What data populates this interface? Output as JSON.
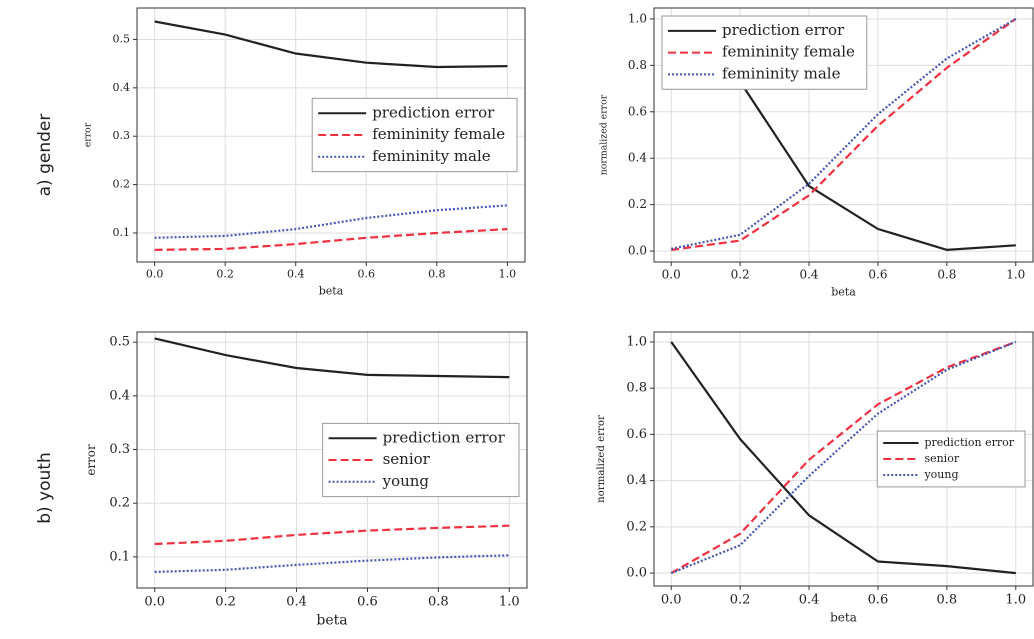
{
  "row_labels": [
    "a) gender",
    "b) youth"
  ],
  "chart_data": [
    {
      "type": "line",
      "xlabel": "beta",
      "ylabel": "error",
      "x": [
        0,
        0.2,
        0.4,
        0.6,
        0.8,
        1.0
      ],
      "xlim": [
        -0.05,
        1.05
      ],
      "ylim": [
        0.04,
        0.565
      ],
      "xticks": [
        {
          "value": 0,
          "label": "0.0"
        },
        0.2,
        0.4,
        0.6,
        0.8,
        {
          "value": 1,
          "label": "1.0"
        }
      ],
      "yticks": [
        0.1,
        0.2,
        0.3,
        0.4,
        0.5
      ],
      "grid": true,
      "legend": "center right",
      "series": [
        {
          "name": "prediction error",
          "color": "#222222",
          "linestyle": "solid",
          "values": [
            0.537,
            0.51,
            0.471,
            0.452,
            0.443,
            0.445
          ]
        },
        {
          "name": "femininity female",
          "color": "#f0303f",
          "linestyle": "dashed",
          "values": [
            0.065,
            0.067,
            0.077,
            0.09,
            0.1,
            0.108
          ]
        },
        {
          "name": "femininity male",
          "color": "#4455bb",
          "linestyle": "dotted",
          "values": [
            0.09,
            0.094,
            0.108,
            0.131,
            0.147,
            0.157
          ]
        }
      ]
    },
    {
      "type": "line",
      "xlabel": "beta",
      "ylabel": "normalized error",
      "x": [
        0,
        0.2,
        0.4,
        0.6,
        0.8,
        1.0
      ],
      "xlim": [
        -0.05,
        1.05
      ],
      "ylim": [
        -0.047,
        1.047
      ],
      "xticks": [
        {
          "value": 0,
          "label": "0.0"
        },
        0.2,
        0.4,
        0.6,
        0.8,
        {
          "value": 1,
          "label": "1.0"
        }
      ],
      "yticks": [
        {
          "value": 0,
          "label": "0.0"
        },
        0.2,
        0.4,
        0.6,
        0.8,
        {
          "value": 1,
          "label": "1.0"
        }
      ],
      "grid": true,
      "legend": "upper left",
      "series": [
        {
          "name": "prediction error",
          "color": "#222222",
          "linestyle": "solid",
          "values": [
            1.0,
            0.73,
            0.28,
            0.095,
            0.005,
            0.025
          ]
        },
        {
          "name": "femininity female",
          "color": "#f0303f",
          "linestyle": "dashed",
          "values": [
            0.005,
            0.045,
            0.24,
            0.54,
            0.79,
            1.0
          ]
        },
        {
          "name": "femininity male",
          "color": "#4455bb",
          "linestyle": "dotted",
          "values": [
            0.01,
            0.07,
            0.29,
            0.59,
            0.83,
            1.0
          ]
        }
      ]
    },
    {
      "type": "line",
      "xlabel": "beta",
      "ylabel": "error",
      "x": [
        0,
        0.2,
        0.4,
        0.6,
        0.8,
        1.0
      ],
      "xlim": [
        -0.05,
        1.05
      ],
      "ylim": [
        0.042,
        0.519
      ],
      "xticks": [
        {
          "value": 0,
          "label": "0.0"
        },
        0.2,
        0.4,
        0.6,
        0.8,
        {
          "value": 1,
          "label": "1.0"
        }
      ],
      "yticks": [
        0.1,
        0.2,
        0.3,
        0.4,
        0.5
      ],
      "grid": true,
      "legend": "center right",
      "series": [
        {
          "name": "prediction error",
          "color": "#222222",
          "linestyle": "solid",
          "values": [
            0.507,
            0.476,
            0.452,
            0.439,
            0.437,
            0.435
          ]
        },
        {
          "name": "senior",
          "color": "#f0303f",
          "linestyle": "dashed",
          "values": [
            0.124,
            0.13,
            0.141,
            0.149,
            0.154,
            0.158
          ]
        },
        {
          "name": "young",
          "color": "#4455bb",
          "linestyle": "dotted",
          "values": [
            0.072,
            0.076,
            0.085,
            0.093,
            0.099,
            0.103
          ]
        }
      ]
    },
    {
      "type": "line",
      "xlabel": "beta",
      "ylabel": "normalized error",
      "x": [
        0,
        0.2,
        0.4,
        0.6,
        0.8,
        1.0
      ],
      "xlim": [
        -0.05,
        1.05
      ],
      "ylim": [
        -0.056,
        1.043
      ],
      "xticks": [
        {
          "value": 0,
          "label": "0.0"
        },
        0.2,
        0.4,
        0.6,
        0.8,
        {
          "value": 1,
          "label": "1.0"
        }
      ],
      "yticks": [
        {
          "value": 0,
          "label": "0.0"
        },
        0.2,
        0.4,
        0.6,
        0.8,
        {
          "value": 1,
          "label": "1.0"
        }
      ],
      "grid": true,
      "legend": "center right",
      "series": [
        {
          "name": "prediction error",
          "color": "#222222",
          "linestyle": "solid",
          "values": [
            1.0,
            0.58,
            0.25,
            0.05,
            0.03,
            0.0
          ]
        },
        {
          "name": "senior",
          "color": "#f0303f",
          "linestyle": "dashed",
          "values": [
            0.0,
            0.17,
            0.49,
            0.73,
            0.89,
            1.0
          ]
        },
        {
          "name": "young",
          "color": "#4455bb",
          "linestyle": "dotted",
          "values": [
            0.0,
            0.12,
            0.42,
            0.69,
            0.88,
            1.0
          ]
        }
      ]
    }
  ]
}
